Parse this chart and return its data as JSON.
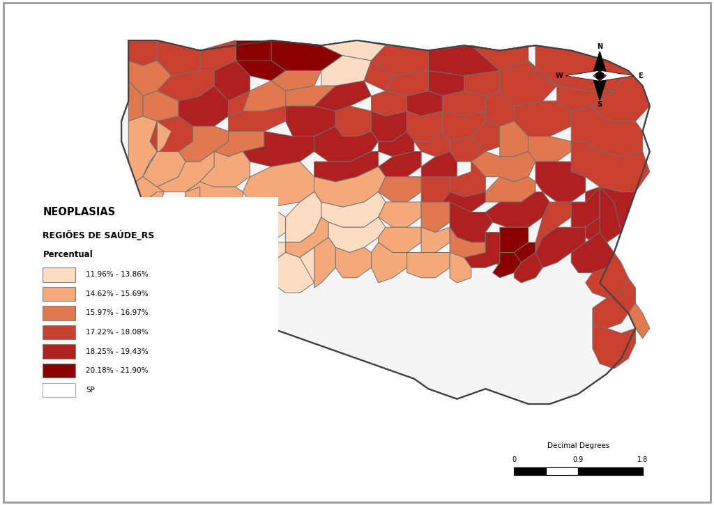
{
  "legend_title1": "NEOPLASIAS",
  "legend_title2": "REGIÕES DE SAÚDE_RS",
  "legend_title3": "Percentual",
  "legend_entries": [
    {
      "label": "11.96% - 13.86%",
      "color": "#FDDCC4"
    },
    {
      "label": "14.62% - 15.69%",
      "color": "#F4A97A"
    },
    {
      "label": "15.97% - 16.97%",
      "color": "#E07850"
    },
    {
      "label": "17.22% - 18.08%",
      "color": "#C94030"
    },
    {
      "label": "18.25% - 19.43%",
      "color": "#B02020"
    },
    {
      "label": "20.18% - 21.90%",
      "color": "#8B0000"
    },
    {
      "label": "SP",
      "color": "#FFFFFF"
    }
  ],
  "scale_label": "Decimal Degrees",
  "scale_values": [
    "0",
    "0.9",
    "1.8"
  ],
  "background_color": "#FFFFFF",
  "border_color": "#707070",
  "fig_border_color": "#AAAAAA"
}
